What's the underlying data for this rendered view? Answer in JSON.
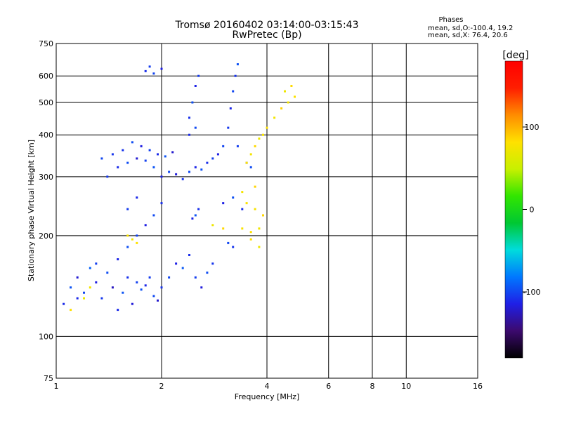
{
  "chart_data": {
    "type": "scatter",
    "title": "Tromsø 20160402 03:14:00-03:15:43",
    "subtitle": "RwPretec (Bp)",
    "xlabel": "Frequency [MHz]",
    "ylabel": "Stationary phase Virtual Height [km]",
    "xscale": "log",
    "yscale": "log",
    "xlim": [
      1,
      16
    ],
    "ylim": [
      75,
      750
    ],
    "x_ticks": [
      1,
      2,
      4,
      6,
      8,
      10,
      16
    ],
    "y_ticks": [
      75,
      100,
      200,
      300,
      400,
      500,
      600,
      750
    ],
    "grid": true,
    "stats_header": "Phases",
    "stats_lines": [
      "mean, sd,O:-100.4, 19.2",
      "mean, sd,X:  76.4, 20.6"
    ],
    "colorbar": {
      "label": "[deg]",
      "range": [
        -180,
        180
      ],
      "ticks": [
        100,
        0,
        -100
      ],
      "colors": [
        "#000000",
        "#3c0a6e",
        "#1f1fe6",
        "#0078ff",
        "#00dcdc",
        "#00c832",
        "#32e600",
        "#c8f000",
        "#ffe100",
        "#ff8c00",
        "#ff1e00",
        "#ff0000"
      ]
    },
    "series": [
      {
        "mode": "O",
        "points": [
          [
            1.05,
            125,
            -110
          ],
          [
            1.1,
            140,
            -95
          ],
          [
            1.15,
            150,
            -120
          ],
          [
            1.2,
            135,
            -100
          ],
          [
            1.25,
            160,
            -90
          ],
          [
            1.3,
            145,
            -115
          ],
          [
            1.35,
            130,
            -105
          ],
          [
            1.4,
            155,
            -98
          ],
          [
            1.45,
            140,
            -125
          ],
          [
            1.5,
            120,
            -110
          ],
          [
            1.55,
            135,
            -95
          ],
          [
            1.6,
            150,
            -108
          ],
          [
            1.65,
            125,
            -118
          ],
          [
            1.7,
            145,
            -102
          ],
          [
            1.75,
            138,
            -96
          ],
          [
            1.8,
            142,
            -112
          ],
          [
            1.85,
            150,
            -104
          ],
          [
            1.9,
            132,
            -99
          ],
          [
            1.95,
            128,
            -121
          ],
          [
            2.0,
            140,
            -107
          ],
          [
            2.1,
            150,
            -100
          ],
          [
            2.2,
            165,
            -114
          ],
          [
            2.3,
            160,
            -93
          ],
          [
            2.4,
            175,
            -109
          ],
          [
            2.5,
            150,
            -103
          ],
          [
            2.6,
            140,
            -117
          ],
          [
            2.7,
            155,
            -98
          ],
          [
            2.8,
            165,
            -106
          ],
          [
            1.5,
            170,
            -112
          ],
          [
            1.6,
            185,
            -97
          ],
          [
            1.7,
            200,
            -101
          ],
          [
            1.8,
            215,
            -115
          ],
          [
            1.9,
            230,
            -99
          ],
          [
            2.0,
            250,
            -108
          ],
          [
            1.6,
            240,
            -104
          ],
          [
            1.7,
            260,
            -111
          ],
          [
            1.4,
            300,
            -105
          ],
          [
            1.5,
            320,
            -110
          ],
          [
            1.6,
            330,
            -98
          ],
          [
            1.7,
            340,
            -120
          ],
          [
            1.8,
            335,
            -102
          ],
          [
            1.9,
            320,
            -95
          ],
          [
            2.0,
            300,
            -113
          ],
          [
            2.1,
            310,
            -100
          ],
          [
            2.2,
            305,
            -118
          ],
          [
            2.3,
            295,
            -107
          ],
          [
            2.4,
            310,
            -99
          ],
          [
            2.5,
            320,
            -112
          ],
          [
            2.6,
            315,
            -96
          ],
          [
            2.7,
            330,
            -109
          ],
          [
            2.8,
            340,
            -103
          ],
          [
            2.9,
            350,
            -115
          ],
          [
            3.0,
            370,
            -101
          ],
          [
            1.55,
            360,
            -107
          ],
          [
            1.65,
            380,
            -98
          ],
          [
            1.75,
            370,
            -116
          ],
          [
            1.85,
            360,
            -102
          ],
          [
            1.95,
            350,
            -110
          ],
          [
            2.05,
            345,
            -95
          ],
          [
            2.15,
            355,
            -121
          ],
          [
            1.45,
            350,
            -106
          ],
          [
            1.35,
            340,
            -100
          ],
          [
            2.4,
            450,
            -108
          ],
          [
            2.45,
            500,
            -97
          ],
          [
            2.5,
            560,
            -113
          ],
          [
            2.55,
            600,
            -104
          ],
          [
            2.4,
            400,
            -110
          ],
          [
            2.5,
            420,
            -99
          ],
          [
            3.1,
            420,
            -105
          ],
          [
            3.15,
            480,
            -112
          ],
          [
            3.2,
            540,
            -100
          ],
          [
            3.25,
            600,
            -107
          ],
          [
            3.3,
            650,
            -96
          ],
          [
            3.3,
            370,
            -103
          ],
          [
            3.5,
            330,
            -111
          ],
          [
            3.6,
            320,
            -98
          ],
          [
            1.8,
            620,
            -109
          ],
          [
            1.9,
            610,
            -101
          ],
          [
            2.0,
            630,
            -115
          ],
          [
            1.85,
            640,
            -104
          ],
          [
            2.5,
            230,
            -95
          ],
          [
            2.55,
            240,
            -108
          ],
          [
            2.45,
            225,
            -112
          ],
          [
            3.1,
            190,
            -100
          ],
          [
            3.2,
            185,
            -106
          ],
          [
            3.0,
            250,
            -114
          ],
          [
            3.2,
            260,
            -97
          ],
          [
            3.4,
            240,
            -109
          ],
          [
            1.3,
            165,
            -103
          ],
          [
            1.15,
            130,
            -111
          ]
        ]
      },
      {
        "mode": "X",
        "points": [
          [
            3.5,
            330,
            80
          ],
          [
            3.6,
            350,
            75
          ],
          [
            3.7,
            370,
            85
          ],
          [
            3.8,
            390,
            70
          ],
          [
            3.9,
            400,
            78
          ],
          [
            4.0,
            420,
            82
          ],
          [
            4.2,
            450,
            74
          ],
          [
            4.4,
            480,
            88
          ],
          [
            4.6,
            500,
            76
          ],
          [
            4.8,
            520,
            80
          ],
          [
            4.5,
            540,
            72
          ],
          [
            4.7,
            560,
            84
          ],
          [
            3.4,
            210,
            78
          ],
          [
            3.6,
            205,
            81
          ],
          [
            3.8,
            210,
            73
          ],
          [
            3.9,
            230,
            86
          ],
          [
            3.7,
            240,
            77
          ],
          [
            3.5,
            250,
            79
          ],
          [
            3.6,
            195,
            83
          ],
          [
            3.8,
            185,
            71
          ],
          [
            3.4,
            270,
            75
          ],
          [
            3.7,
            280,
            87
          ],
          [
            1.2,
            130,
            70
          ],
          [
            1.25,
            140,
            76
          ],
          [
            1.1,
            120,
            82
          ],
          [
            1.6,
            200,
            78
          ],
          [
            1.65,
            195,
            74
          ],
          [
            1.7,
            190,
            81
          ],
          [
            2.8,
            215,
            72
          ],
          [
            3.0,
            210,
            85
          ]
        ]
      }
    ]
  }
}
